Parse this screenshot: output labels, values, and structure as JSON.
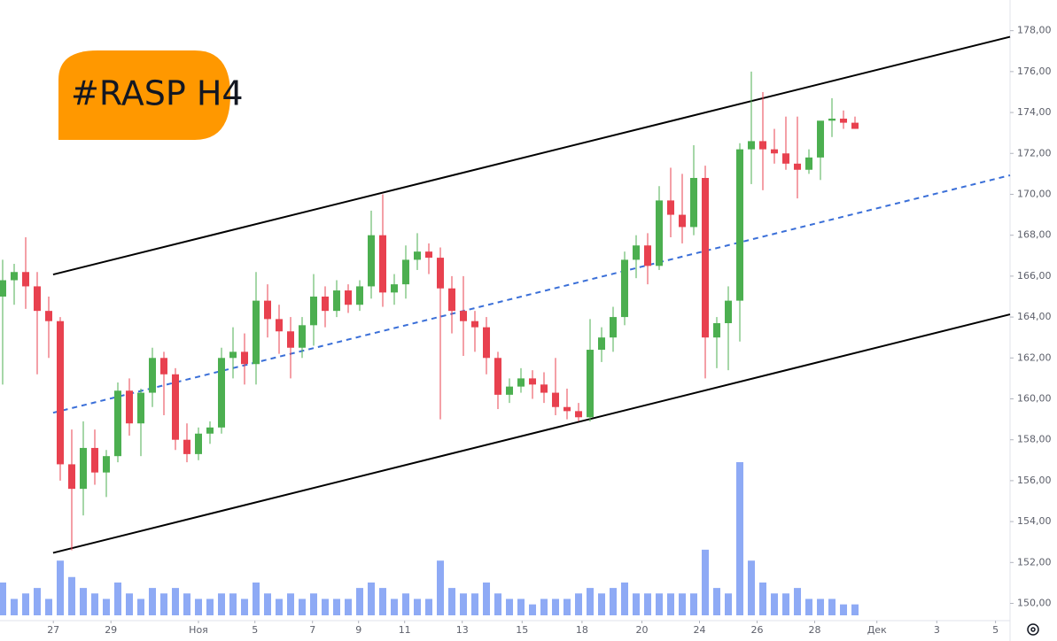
{
  "chart_data": {
    "type": "candlestick",
    "title": "#RASP H4",
    "open": [
      165.0,
      165.8,
      166.2,
      165.5,
      164.3,
      163.8,
      156.8,
      155.6,
      157.6,
      156.4,
      157.2,
      160.4,
      158.8,
      160.3,
      162.0,
      161.2,
      158.0,
      157.3,
      158.3,
      158.6,
      162.0,
      162.3,
      161.7,
      164.8,
      163.9,
      163.3,
      162.5,
      163.6,
      165.0,
      164.3,
      165.3,
      164.6,
      165.5,
      168.0,
      165.2,
      165.6,
      166.8,
      167.2,
      166.9,
      165.4,
      164.3,
      163.8,
      163.5,
      162.0,
      160.2,
      160.6,
      161.0,
      160.7,
      160.3,
      159.6,
      159.4,
      159.1,
      162.4,
      163.0,
      164.0,
      166.8,
      167.5,
      166.5,
      169.7,
      169.0,
      168.4,
      170.8,
      163.0,
      163.7,
      164.8,
      172.2,
      172.6,
      172.2,
      172.0,
      171.5,
      171.2,
      171.8,
      173.6,
      173.7,
      173.5
    ],
    "high": [
      166.8,
      166.6,
      167.9,
      166.2,
      165.0,
      164.0,
      158.5,
      158.9,
      158.5,
      157.5,
      160.8,
      161.0,
      160.5,
      162.5,
      162.3,
      161.5,
      158.8,
      158.6,
      158.9,
      162.5,
      163.5,
      163.2,
      166.2,
      165.6,
      164.6,
      164.0,
      164.0,
      166.1,
      165.5,
      165.8,
      165.6,
      165.8,
      169.2,
      170.0,
      166.1,
      167.5,
      168.1,
      167.6,
      167.4,
      166.0,
      166.0,
      164.3,
      164.0,
      162.3,
      161.0,
      161.5,
      161.4,
      161.3,
      162.0,
      160.5,
      159.8,
      163.9,
      163.5,
      164.5,
      167.2,
      168.0,
      168.1,
      170.4,
      171.3,
      171.0,
      172.4,
      171.4,
      164.0,
      165.5,
      172.5,
      176.0,
      175.0,
      173.2,
      173.8,
      173.8,
      172.2,
      173.5,
      174.7,
      174.1,
      173.8
    ],
    "low": [
      160.7,
      164.6,
      164.4,
      161.2,
      162.0,
      156.0,
      152.6,
      154.3,
      155.8,
      155.2,
      156.9,
      158.2,
      157.2,
      159.6,
      159.2,
      157.5,
      156.9,
      157.0,
      157.8,
      158.3,
      161.0,
      160.7,
      160.7,
      163.0,
      162.2,
      161.0,
      162.0,
      162.6,
      163.5,
      164.0,
      164.2,
      164.3,
      164.9,
      164.5,
      164.6,
      164.9,
      166.3,
      166.1,
      159.0,
      163.2,
      162.1,
      162.3,
      161.2,
      159.5,
      159.8,
      160.3,
      160.0,
      159.8,
      159.2,
      159.0,
      158.9,
      158.9,
      161.8,
      162.3,
      163.6,
      165.9,
      165.6,
      166.3,
      167.9,
      167.6,
      168.0,
      161.0,
      161.5,
      161.4,
      162.8,
      170.5,
      170.2,
      171.5,
      171.2,
      169.8,
      171.0,
      170.7,
      172.8,
      173.2,
      173.2
    ],
    "close": [
      165.8,
      166.2,
      165.5,
      164.3,
      163.8,
      156.8,
      155.6,
      157.6,
      156.4,
      157.2,
      160.4,
      158.8,
      160.3,
      162.0,
      161.2,
      158.0,
      157.3,
      158.3,
      158.6,
      162.0,
      162.3,
      161.7,
      164.8,
      163.9,
      163.3,
      162.5,
      163.6,
      165.0,
      164.3,
      165.3,
      164.6,
      165.5,
      168.0,
      165.2,
      165.6,
      166.8,
      167.2,
      166.9,
      165.4,
      164.3,
      163.8,
      163.5,
      162.0,
      160.2,
      160.6,
      161.0,
      160.7,
      160.3,
      159.6,
      159.4,
      159.1,
      162.4,
      163.0,
      164.0,
      166.8,
      167.5,
      166.5,
      169.7,
      169.0,
      168.4,
      170.8,
      163.0,
      163.7,
      164.8,
      172.2,
      172.6,
      172.2,
      172.0,
      171.5,
      171.2,
      171.8,
      173.6,
      173.7,
      173.5,
      173.2
    ],
    "volume": [
      0.6,
      0.3,
      0.4,
      0.5,
      0.3,
      1.0,
      0.7,
      0.5,
      0.4,
      0.3,
      0.6,
      0.4,
      0.3,
      0.5,
      0.4,
      0.5,
      0.4,
      0.3,
      0.3,
      0.4,
      0.4,
      0.3,
      0.6,
      0.4,
      0.3,
      0.4,
      0.3,
      0.4,
      0.3,
      0.3,
      0.3,
      0.5,
      0.6,
      0.5,
      0.3,
      0.4,
      0.3,
      0.3,
      1.0,
      0.5,
      0.4,
      0.4,
      0.6,
      0.4,
      0.3,
      0.3,
      0.2,
      0.3,
      0.3,
      0.3,
      0.4,
      0.5,
      0.4,
      0.5,
      0.6,
      0.4,
      0.4,
      0.4,
      0.4,
      0.4,
      0.4,
      1.2,
      0.5,
      0.4,
      2.8,
      1.0,
      0.6,
      0.4,
      0.4,
      0.5,
      0.3,
      0.3,
      0.3,
      0.2,
      0.2
    ],
    "up_color": "#4caf50",
    "down_color": "#e8414f",
    "volume_color": "#8eaaf5",
    "xlim": [
      -0.23,
      87.46
    ],
    "ylim": [
      149.2,
      179.5
    ],
    "xticks": [
      {
        "value": 4.4,
        "label": "27"
      },
      {
        "value": 9.4,
        "label": "29"
      },
      {
        "value": 17.0,
        "label": "Ноя"
      },
      {
        "value": 21.9,
        "label": "5"
      },
      {
        "value": 26.9,
        "label": "7"
      },
      {
        "value": 30.9,
        "label": "9"
      },
      {
        "value": 34.9,
        "label": "11"
      },
      {
        "value": 39.9,
        "label": "13"
      },
      {
        "value": 45.1,
        "label": "15"
      },
      {
        "value": 50.3,
        "label": "18"
      },
      {
        "value": 55.5,
        "label": "20"
      },
      {
        "value": 60.5,
        "label": "24"
      },
      {
        "value": 65.5,
        "label": "26"
      },
      {
        "value": 70.5,
        "label": "28"
      },
      {
        "value": 75.9,
        "label": "Дек"
      },
      {
        "value": 81.1,
        "label": "3"
      },
      {
        "value": 86.2,
        "label": "5"
      }
    ],
    "yticks": [
      {
        "value": 150,
        "label": "150,00"
      },
      {
        "value": 152,
        "label": "152,00"
      },
      {
        "value": 154,
        "label": "154,00"
      },
      {
        "value": 156,
        "label": "156,00"
      },
      {
        "value": 158,
        "label": "158,00"
      },
      {
        "value": 160,
        "label": "160,00"
      },
      {
        "value": 162,
        "label": "162,00"
      },
      {
        "value": 164,
        "label": "164,00"
      },
      {
        "value": 166,
        "label": "166,00"
      },
      {
        "value": 168,
        "label": "168,00"
      },
      {
        "value": 170,
        "label": "170,00"
      },
      {
        "value": 172,
        "label": "172,00"
      },
      {
        "value": 174,
        "label": "174,00"
      },
      {
        "value": 176,
        "label": "176,00"
      },
      {
        "value": 178,
        "label": "178,00"
      }
    ],
    "grid": false,
    "trendlines": [
      {
        "x": [
          4.38,
          87.46
        ],
        "y": [
          166.08,
          177.7
        ],
        "color": "#000000",
        "dashed": false
      },
      {
        "x": [
          4.38,
          87.46
        ],
        "y": [
          152.47,
          164.13
        ],
        "color": "#000000",
        "dashed": false
      },
      {
        "x": [
          4.38,
          87.46
        ],
        "y": [
          159.32,
          170.93
        ],
        "color": "#3a6fd8",
        "dashed": true
      }
    ]
  }
}
